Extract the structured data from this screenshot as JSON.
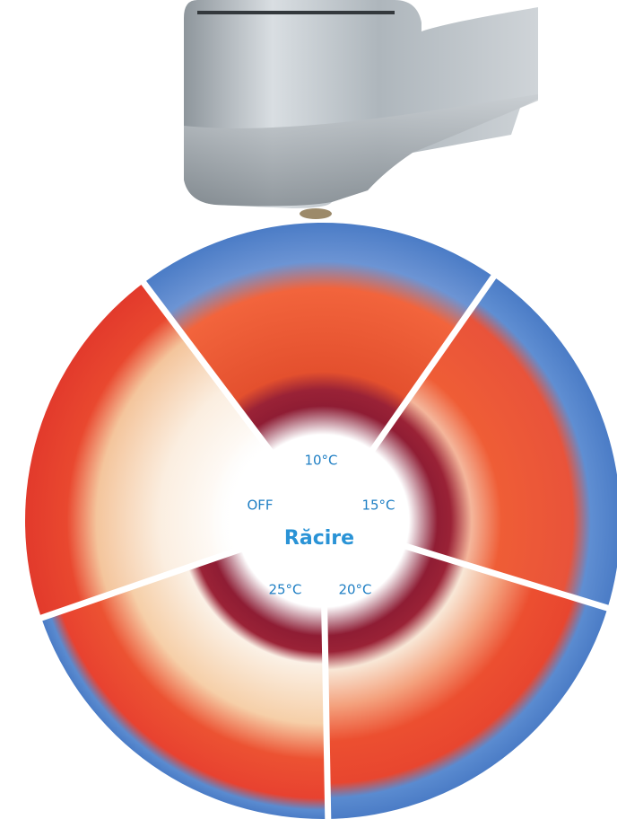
{
  "center_title": "Răcire",
  "segments": [
    {
      "label": "10°C"
    },
    {
      "label": "15°C"
    },
    {
      "label": "20°C"
    },
    {
      "label": "25°C"
    },
    {
      "label": "OFF"
    }
  ]
}
